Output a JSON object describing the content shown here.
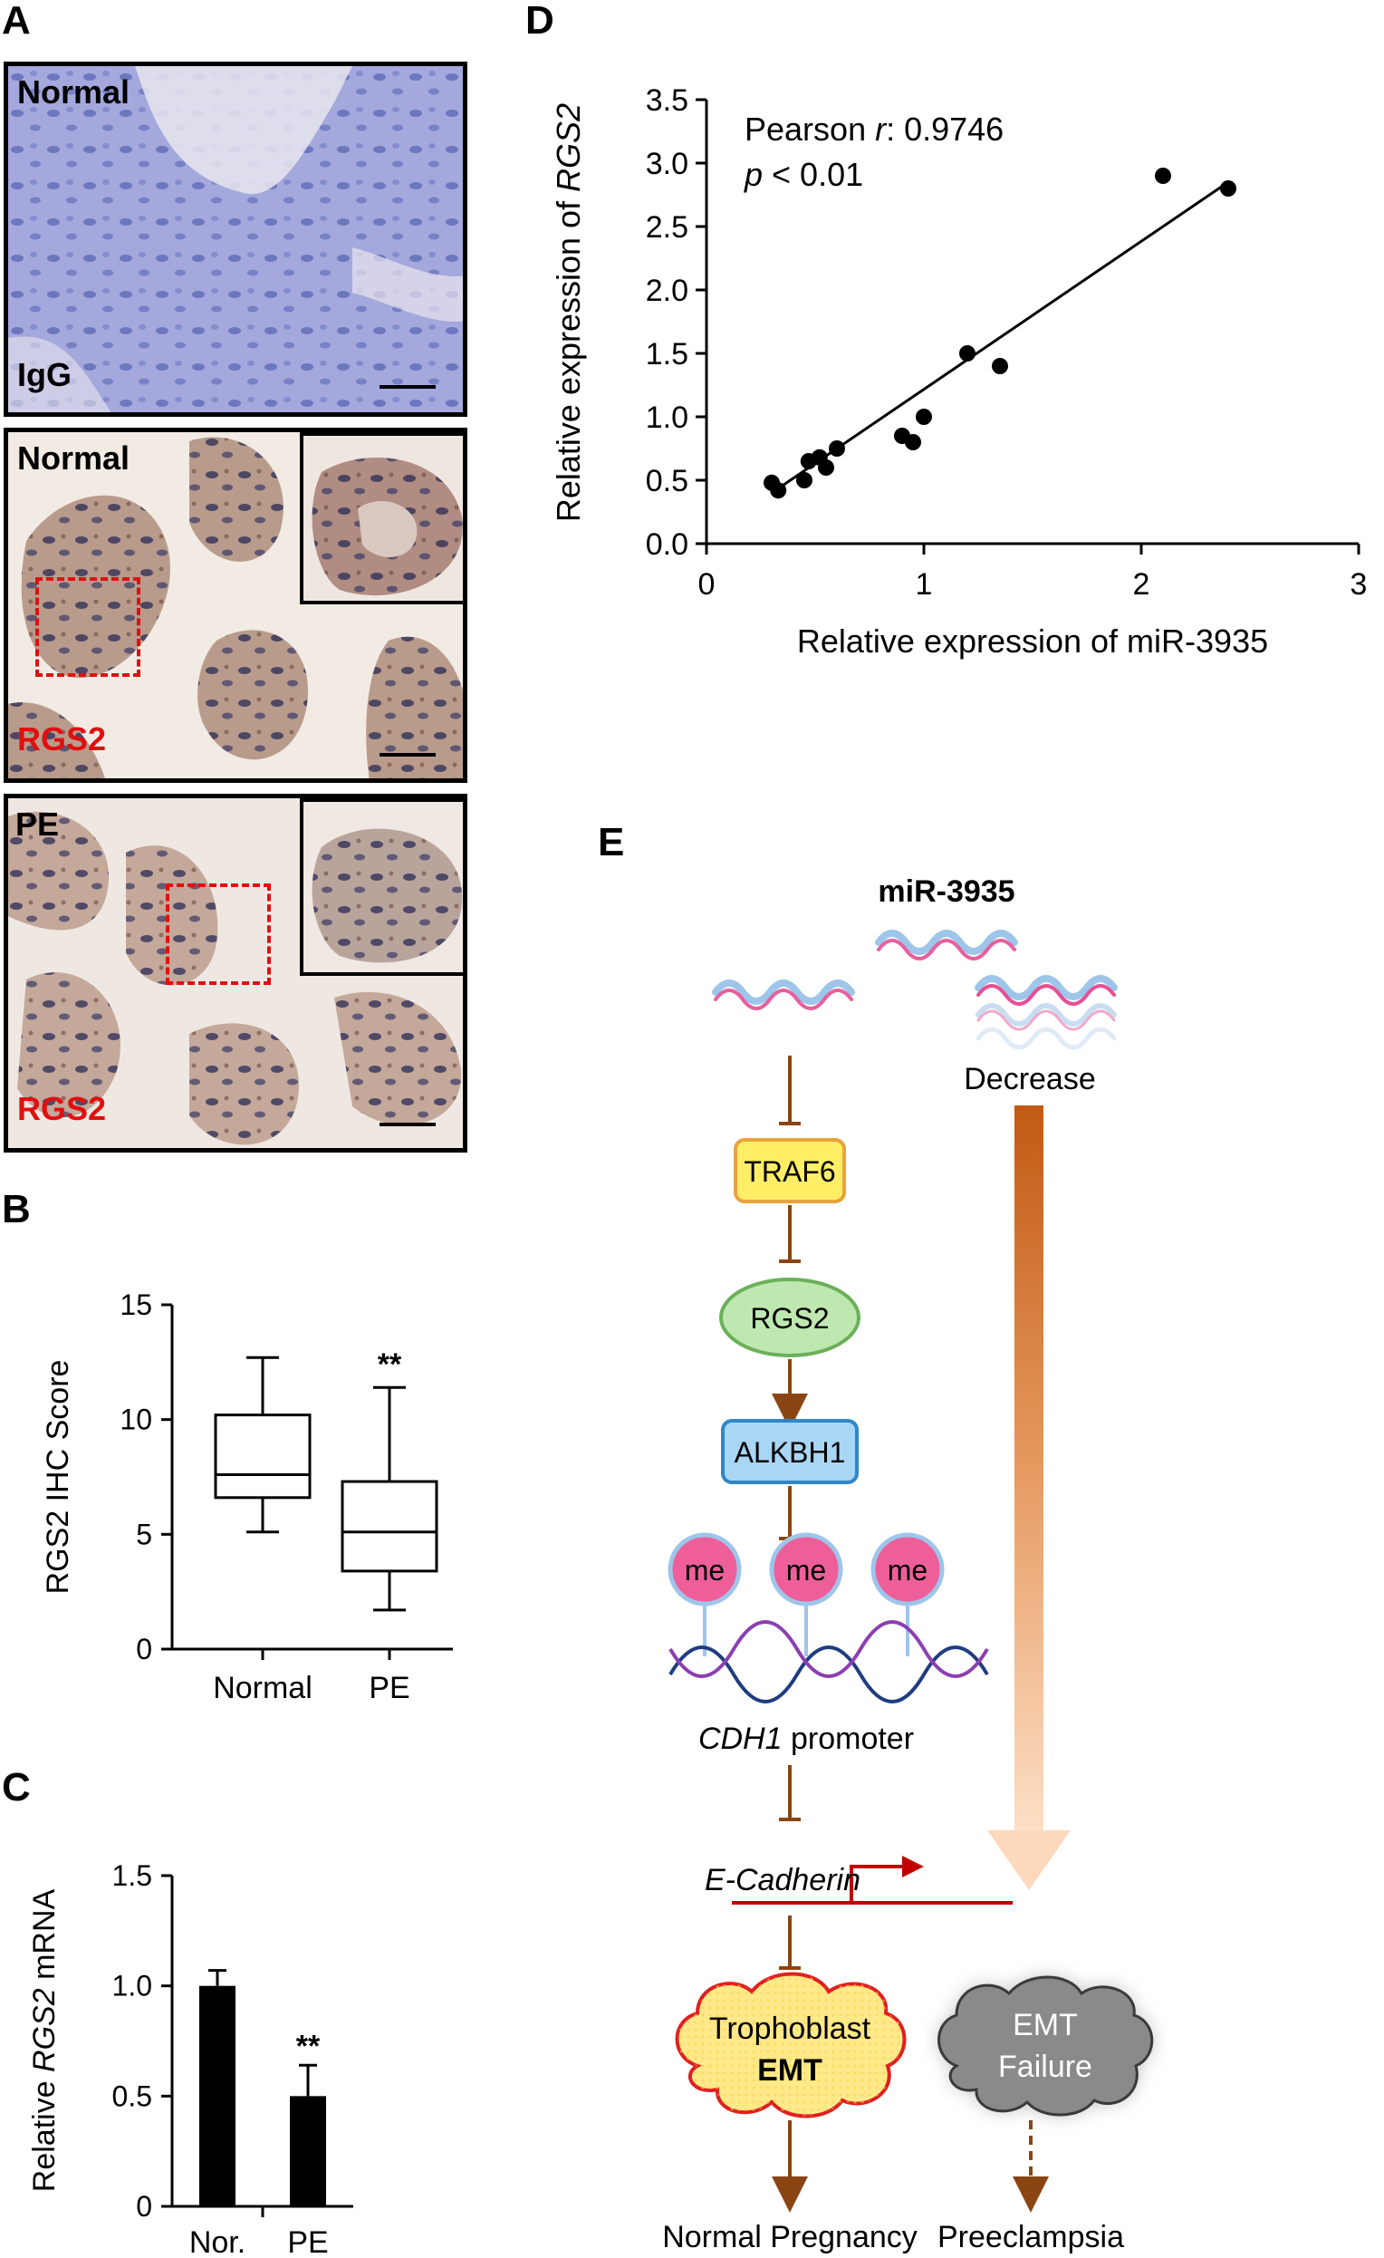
{
  "panels": {
    "A": "A",
    "B": "B",
    "C": "C",
    "D": "D",
    "E": "E"
  },
  "panel_a": {
    "images": [
      {
        "top_label": "Normal",
        "bottom_label": "IgG"
      },
      {
        "top_label": "Normal",
        "bottom_label": "RGS2"
      },
      {
        "top_label": "PE",
        "bottom_label": "RGS2"
      }
    ]
  },
  "chart_data": [
    {
      "panel": "B",
      "type": "box",
      "ylabel": "RGS2 IHC Score",
      "ylim": [
        0,
        15
      ],
      "yticks": [
        "0",
        "5",
        "10",
        "15"
      ],
      "categories": [
        "Normal",
        "PE"
      ],
      "boxes": [
        {
          "name": "Normal",
          "min": 5.1,
          "q1": 6.6,
          "median": 7.6,
          "q3": 10.2,
          "max": 12.7
        },
        {
          "name": "PE",
          "min": 1.7,
          "q1": 3.4,
          "median": 5.1,
          "q3": 7.3,
          "max": 11.4
        }
      ],
      "annotations": [
        {
          "category": "PE",
          "text": "**"
        }
      ]
    },
    {
      "panel": "C",
      "type": "bar",
      "ylabel_pre": "Relative ",
      "ylabel_italic": "RGS2",
      "ylabel_post": " mRNA",
      "ylim": [
        0,
        1.5
      ],
      "yticks": [
        "0",
        "0.5",
        "1.0",
        "1.5"
      ],
      "categories": [
        "Nor.",
        "PE"
      ],
      "values": [
        1.0,
        0.5
      ],
      "errors": [
        0.07,
        0.14
      ],
      "annotations": [
        {
          "category": "PE",
          "text": "**"
        }
      ]
    },
    {
      "panel": "D",
      "type": "scatter",
      "xlabel": "Relative expression of miR-3935",
      "ylabel_pre": "Relative expression of ",
      "ylabel_italic": "RGS2",
      "xlim": [
        0,
        3
      ],
      "ylim": [
        0,
        3.5
      ],
      "xticks": [
        "0",
        "1",
        "2",
        "3"
      ],
      "yticks": [
        "0.0",
        "0.5",
        "1.0",
        "1.5",
        "2.0",
        "2.5",
        "3.0",
        "3.5"
      ],
      "points": [
        {
          "x": 0.3,
          "y": 0.48
        },
        {
          "x": 0.33,
          "y": 0.42
        },
        {
          "x": 0.45,
          "y": 0.5
        },
        {
          "x": 0.47,
          "y": 0.65
        },
        {
          "x": 0.52,
          "y": 0.68
        },
        {
          "x": 0.55,
          "y": 0.6
        },
        {
          "x": 0.6,
          "y": 0.75
        },
        {
          "x": 0.9,
          "y": 0.85
        },
        {
          "x": 0.95,
          "y": 0.8
        },
        {
          "x": 1.0,
          "y": 1.0
        },
        {
          "x": 1.2,
          "y": 1.5
        },
        {
          "x": 1.35,
          "y": 1.4
        },
        {
          "x": 2.1,
          "y": 2.9
        },
        {
          "x": 2.4,
          "y": 2.8
        }
      ],
      "fit_line": {
        "x": [
          0.3,
          2.4
        ],
        "y": [
          0.4,
          2.85
        ]
      },
      "stat_line1_pre": "Pearson ",
      "stat_line1_italic": "r",
      "stat_line1_post": ": 0.9746",
      "stat_line2_italic": "p",
      "stat_line2_post": " < 0.01"
    }
  ],
  "panel_e": {
    "mirna_label": "miR-3935",
    "decrease_label": "Decrease",
    "traf6_label": "TRAF6",
    "rgs2_label": "RGS2",
    "alkbh1_label": "ALKBH1",
    "me_labels": [
      "me",
      "me",
      "me"
    ],
    "cdh1_italic": "CDH1",
    "cdh1_post": " promoter",
    "ecadherin_label": "E-Cadherin",
    "trophoblast_line1": "Trophoblast",
    "trophoblast_line2": "EMT",
    "emt_failure_line1": "EMT",
    "emt_failure_line2": "Failure",
    "outcome_normal": "Normal Pregnancy",
    "outcome_pe": "Preeclampsia",
    "colors": {
      "arrow_brown": "#8b4513",
      "traf6_fill": "#ffee66",
      "traf6_border": "#e8a33c",
      "rgs2_fill": "#bfe8b0",
      "alkbh1_fill": "#a9d6f5",
      "me_fill": "#ee5f9a",
      "mirna_pink": "#e64f94",
      "mirna_blue": "#9ec5ea",
      "cloud_yellow": "#ffe98a",
      "cloud_red": "#e02020",
      "cloud_gray": "#8a8a8a",
      "big_arrow_top": "#c8601a",
      "big_arrow_bottom": "#fde0c8"
    }
  }
}
